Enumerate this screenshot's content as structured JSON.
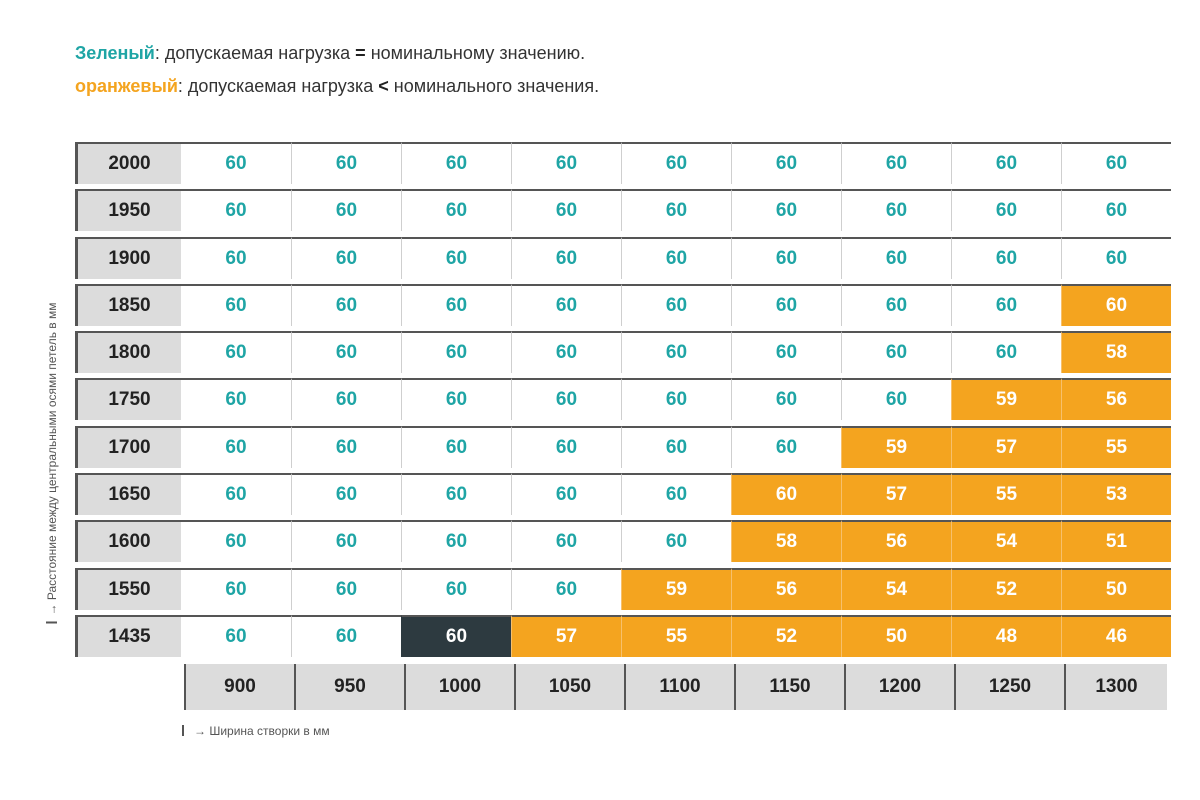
{
  "legend": {
    "green_keyword": "Зеленый",
    "green_text": ": допускаемая нагрузка ",
    "green_operator": "=",
    "green_rest": " номинальному значению.",
    "orange_keyword": "оранжевый",
    "orange_text": ": допускаемая нагрузка ",
    "orange_operator": "<",
    "orange_rest": " номинального значения."
  },
  "y_axis_label": "→ Расстояние между центральными осями петель в мм",
  "x_axis_label": "→ Ширина створки в мм",
  "colors": {
    "green_text": "#1fa5a5",
    "orange": "#f4a41f",
    "dark": "#2d3a40",
    "header_gray": "#dcdcdc"
  },
  "columns": [
    "900",
    "950",
    "1000",
    "1050",
    "1100",
    "1150",
    "1200",
    "1250",
    "1300"
  ],
  "rows": [
    {
      "label": "2000",
      "values": [
        "60",
        "60",
        "60",
        "60",
        "60",
        "60",
        "60",
        "60",
        "60"
      ],
      "cls": [
        "g",
        "g",
        "g",
        "g",
        "g",
        "g",
        "g",
        "g",
        "g"
      ]
    },
    {
      "label": "1950",
      "values": [
        "60",
        "60",
        "60",
        "60",
        "60",
        "60",
        "60",
        "60",
        "60"
      ],
      "cls": [
        "g",
        "g",
        "g",
        "g",
        "g",
        "g",
        "g",
        "g",
        "g"
      ]
    },
    {
      "label": "1900",
      "values": [
        "60",
        "60",
        "60",
        "60",
        "60",
        "60",
        "60",
        "60",
        "60"
      ],
      "cls": [
        "g",
        "g",
        "g",
        "g",
        "g",
        "g",
        "g",
        "g",
        "g"
      ]
    },
    {
      "label": "1850",
      "values": [
        "60",
        "60",
        "60",
        "60",
        "60",
        "60",
        "60",
        "60",
        "60"
      ],
      "cls": [
        "g",
        "g",
        "g",
        "g",
        "g",
        "g",
        "g",
        "g",
        "o"
      ]
    },
    {
      "label": "1800",
      "values": [
        "60",
        "60",
        "60",
        "60",
        "60",
        "60",
        "60",
        "60",
        "58"
      ],
      "cls": [
        "g",
        "g",
        "g",
        "g",
        "g",
        "g",
        "g",
        "g",
        "o"
      ]
    },
    {
      "label": "1750",
      "values": [
        "60",
        "60",
        "60",
        "60",
        "60",
        "60",
        "60",
        "59",
        "56"
      ],
      "cls": [
        "g",
        "g",
        "g",
        "g",
        "g",
        "g",
        "g",
        "o",
        "o"
      ]
    },
    {
      "label": "1700",
      "values": [
        "60",
        "60",
        "60",
        "60",
        "60",
        "60",
        "59",
        "57",
        "55"
      ],
      "cls": [
        "g",
        "g",
        "g",
        "g",
        "g",
        "g",
        "o",
        "o",
        "o"
      ]
    },
    {
      "label": "1650",
      "values": [
        "60",
        "60",
        "60",
        "60",
        "60",
        "60",
        "57",
        "55",
        "53"
      ],
      "cls": [
        "g",
        "g",
        "g",
        "g",
        "g",
        "o",
        "o",
        "o",
        "o"
      ]
    },
    {
      "label": "1600",
      "values": [
        "60",
        "60",
        "60",
        "60",
        "60",
        "58",
        "56",
        "54",
        "51"
      ],
      "cls": [
        "g",
        "g",
        "g",
        "g",
        "g",
        "o",
        "o",
        "o",
        "o"
      ]
    },
    {
      "label": "1550",
      "values": [
        "60",
        "60",
        "60",
        "60",
        "59",
        "56",
        "54",
        "52",
        "50"
      ],
      "cls": [
        "g",
        "g",
        "g",
        "g",
        "o",
        "o",
        "o",
        "o",
        "o"
      ]
    },
    {
      "label": "1435",
      "values": [
        "60",
        "60",
        "60",
        "57",
        "55",
        "52",
        "50",
        "48",
        "46"
      ],
      "cls": [
        "g",
        "g",
        "d",
        "o",
        "o",
        "o",
        "o",
        "o",
        "o"
      ]
    }
  ]
}
